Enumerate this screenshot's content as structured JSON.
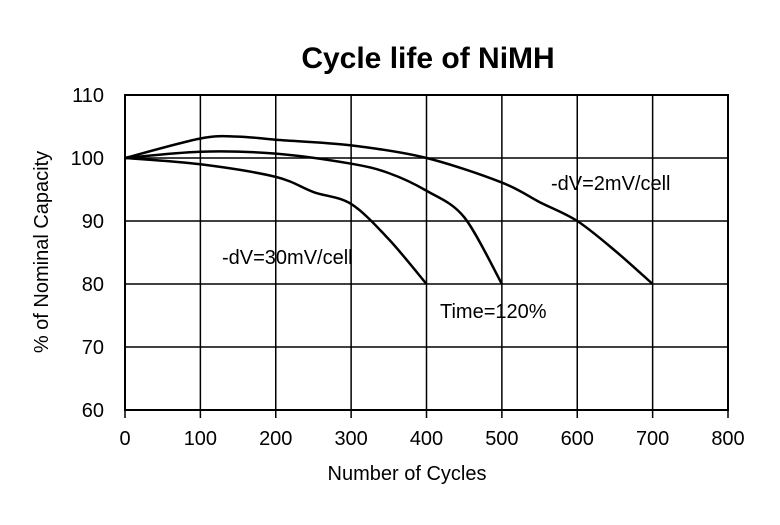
{
  "chart_data": {
    "type": "line",
    "title": "Cycle life of NiMH",
    "xlabel": "Number of Cycles",
    "ylabel": "% of Nominal Capacity",
    "xlim": [
      0,
      800
    ],
    "ylim": [
      60,
      110
    ],
    "xticks": [
      0,
      100,
      200,
      300,
      400,
      500,
      600,
      700,
      800
    ],
    "yticks": [
      60,
      70,
      80,
      90,
      100,
      110
    ],
    "grid": true,
    "line_color": "#000000",
    "series": [
      {
        "name": "-dV=30mV/cell",
        "x": [
          0,
          100,
          200,
          250,
          300,
          350,
          400
        ],
        "y": [
          100,
          99.0,
          97.0,
          94.6,
          92.7,
          87.1,
          80
        ]
      },
      {
        "name": "Time=120%",
        "x": [
          0,
          100,
          200,
          300,
          350,
          400,
          450,
          500
        ],
        "y": [
          100,
          101.0,
          100.7,
          99.1,
          97.6,
          94.8,
          90.6,
          80
        ]
      },
      {
        "name": "-dV=2mV/cell",
        "x": [
          0,
          100,
          150,
          200,
          300,
          400,
          500,
          550,
          600,
          650,
          700
        ],
        "y": [
          100,
          103.1,
          103.4,
          102.9,
          102.0,
          100,
          96.1,
          93.0,
          90,
          85.3,
          80
        ]
      }
    ]
  }
}
